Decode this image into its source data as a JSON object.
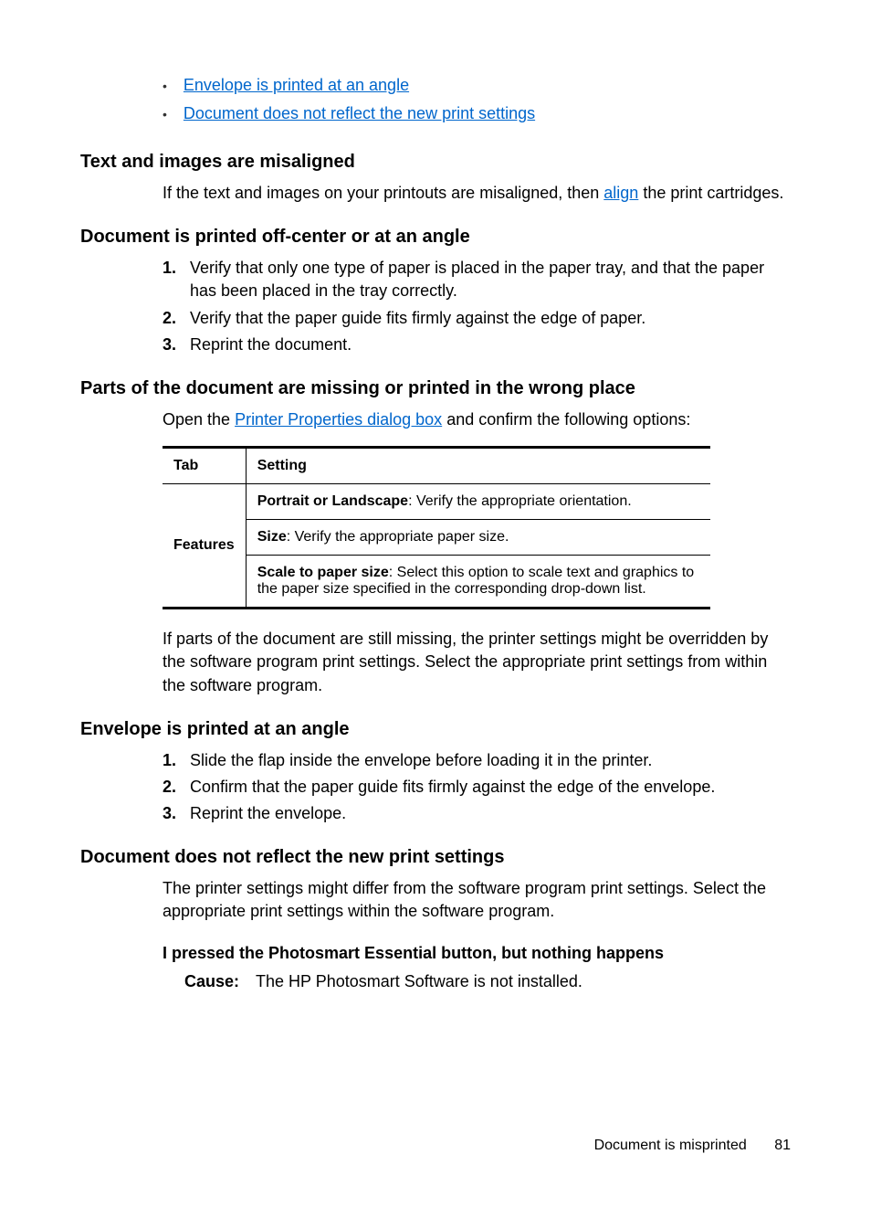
{
  "top_links": {
    "link1": "Envelope is printed at an angle",
    "link2": "Document does not reflect the new print settings"
  },
  "section1": {
    "heading": "Text and images are misaligned",
    "text_before": "If the text and images on your printouts are misaligned, then ",
    "link": "align",
    "text_after": " the print cartridges."
  },
  "section2": {
    "heading": "Document is printed off-center or at an angle",
    "items": [
      "Verify that only one type of paper is placed in the paper tray, and that the paper has been placed in the tray correctly.",
      "Verify that the paper guide fits firmly against the edge of paper.",
      "Reprint the document."
    ]
  },
  "section3": {
    "heading": "Parts of the document are missing or printed in the wrong place",
    "text_before": "Open the ",
    "link": "Printer Properties dialog box",
    "text_after": " and confirm the following options:",
    "table": {
      "header_col1": "Tab",
      "header_col2": "Setting",
      "tab_name": "Features",
      "r1_bold": "Portrait or Landscape",
      "r1_text": ": Verify the appropriate orientation.",
      "r2_bold": "Size",
      "r2_text": ": Verify the appropriate paper size.",
      "r3_bold": "Scale to paper size",
      "r3_text": ": Select this option to scale text and graphics to the paper size specified in the corresponding drop-down list."
    },
    "post_text": "If parts of the document are still missing, the printer settings might be overridden by the software program print settings. Select the appropriate print settings from within the software program."
  },
  "section4": {
    "heading": "Envelope is printed at an angle",
    "items": [
      "Slide the flap inside the envelope before loading it in the printer.",
      "Confirm that the paper guide fits firmly against the edge of the envelope.",
      "Reprint the envelope."
    ]
  },
  "section5": {
    "heading": "Document does not reflect the new print settings",
    "text": "The printer settings might differ from the software program print settings. Select the appropriate print settings within the software program."
  },
  "section6": {
    "heading": "I pressed the Photosmart Essential button, but nothing happens",
    "cause_label": "Cause:",
    "cause_text": "The HP Photosmart Software is not installed."
  },
  "footer": {
    "title": "Document is misprinted",
    "page": "81"
  }
}
